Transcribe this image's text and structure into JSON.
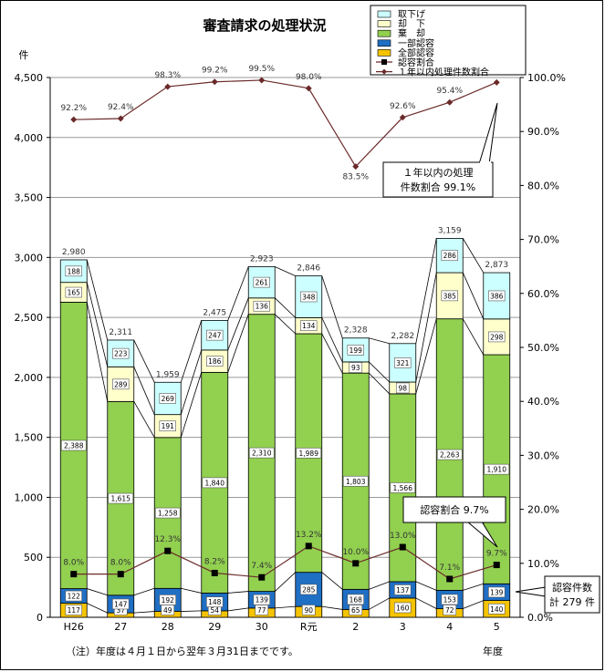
{
  "chart_data": {
    "type": "bar",
    "title": "審査請求の処理状況",
    "y_unit": "件",
    "xlabel": "年度",
    "ylim": [
      0,
      4500
    ],
    "y_ticks": [
      "0",
      "500",
      "1,000",
      "1,500",
      "2,000",
      "2,500",
      "3,000",
      "3,500",
      "4,000",
      "4,500"
    ],
    "y2lim": [
      0,
      100
    ],
    "y2_ticks": [
      "0.0%",
      "10.0%",
      "20.0%",
      "30.0%",
      "40.0%",
      "50.0%",
      "60.0%",
      "70.0%",
      "80.0%",
      "90.0%",
      "100.0%"
    ],
    "categories": [
      "H26",
      "27",
      "28",
      "29",
      "30",
      "R元",
      "2",
      "3",
      "4",
      "5"
    ],
    "series": [
      {
        "name": "全部認容",
        "color": "#f5c400",
        "values": [
          117,
          37,
          49,
          54,
          77,
          90,
          65,
          160,
          72,
          140
        ]
      },
      {
        "name": "一部認容",
        "color": "#1f6fc4",
        "values": [
          122,
          147,
          192,
          148,
          139,
          285,
          168,
          137,
          153,
          139
        ]
      },
      {
        "name": "棄　却",
        "color": "#92d050",
        "values": [
          2388,
          1615,
          1258,
          1840,
          2310,
          1989,
          1803,
          1566,
          2263,
          1910
        ]
      },
      {
        "name": "却　下",
        "color": "#ffffcc",
        "values": [
          165,
          289,
          191,
          186,
          136,
          134,
          93,
          98,
          385,
          298
        ]
      },
      {
        "name": "取下げ",
        "color": "#ccffff",
        "values": [
          188,
          223,
          269,
          247,
          261,
          348,
          199,
          321,
          286,
          386
        ]
      }
    ],
    "totals": [
      "2,980",
      "2,311",
      "1,959",
      "2,475",
      "2,923",
      "2,846",
      "2,328",
      "2,282",
      "3,159",
      "2,873"
    ],
    "lines": [
      {
        "name": "認容割合",
        "axis": "right",
        "color": "#6b2a2a",
        "marker": "square",
        "values": [
          8.0,
          8.0,
          12.3,
          8.2,
          7.4,
          13.2,
          10.0,
          13.0,
          7.1,
          9.7
        ],
        "labels": [
          "8.0%",
          "8.0%",
          "12.3%",
          "8.2%",
          "7.4%",
          "13.2%",
          "10.0%",
          "13.0%",
          "7.1%",
          "9.7%"
        ]
      },
      {
        "name": "１年以内処理件数割合",
        "axis": "right",
        "color": "#6b2a2a",
        "marker": "diamond",
        "values": [
          92.2,
          92.4,
          98.3,
          99.2,
          99.5,
          98.0,
          83.5,
          92.6,
          95.4,
          99.1
        ],
        "labels": [
          "92.2%",
          "92.4%",
          "98.3%",
          "99.2%",
          "99.5%",
          "98.0%",
          "83.5%",
          "92.6%",
          "95.4%",
          "99.1%"
        ]
      }
    ],
    "legend_position": "top-right",
    "grid": true,
    "annotations": {
      "one_year": [
        "１年以内の処理",
        "件数割合 99.1%"
      ],
      "approval_rate": "認容割合 9.7%",
      "approval_count": [
        "認容件数",
        "計 279 件"
      ]
    },
    "note": "（注）年度は４月１日から翌年３月31日までです。"
  }
}
